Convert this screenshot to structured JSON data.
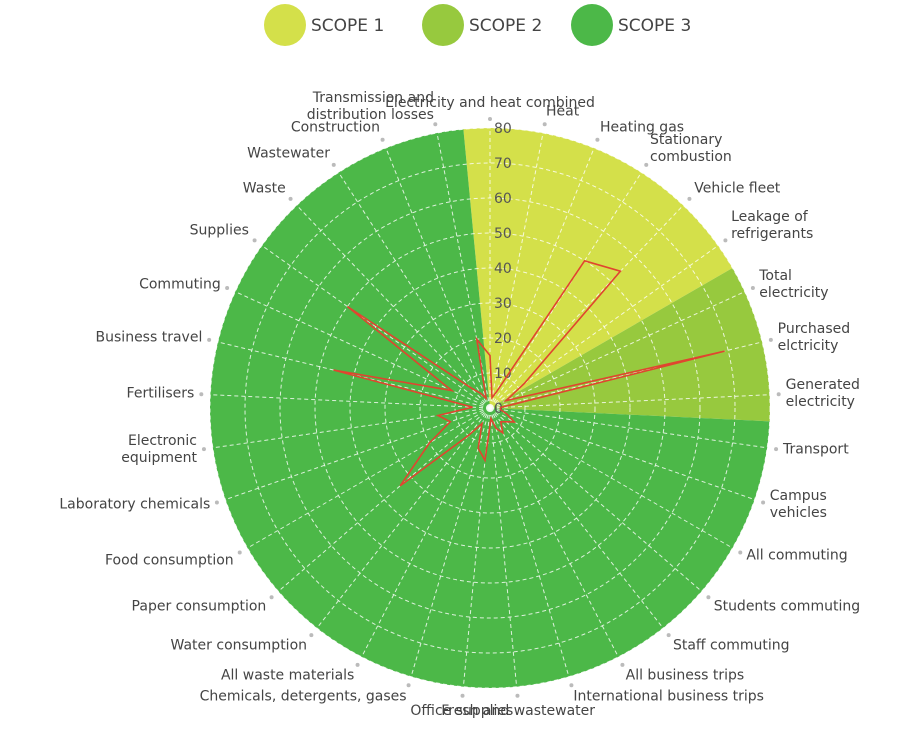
{
  "chart_data": {
    "type": "radar",
    "scopes": [
      {
        "name": "SCOPE 1",
        "color": "#d4e04a",
        "categories": [
          "Electricity and heat combined",
          "Heat",
          "Heating gas",
          "Stationary\ncombustion",
          "Vehicle fleet",
          "Leakage of\nrefrigerants"
        ],
        "values": [
          15,
          3,
          5,
          50,
          54,
          12
        ]
      },
      {
        "name": "SCOPE 2",
        "color": "#97c93e",
        "categories": [
          "Total\nelectricity",
          "Purchased\nelctricity",
          "Generated\nelectricity"
        ],
        "values": [
          5,
          69,
          3
        ]
      },
      {
        "name": "SCOPE 3",
        "color": "#4cb848",
        "categories": [
          "Transport",
          "Campus\nvehicles",
          "All commuting",
          "Students commuting",
          "Staff commuting",
          "All business trips",
          "International business trips",
          "Fresh and wastewater",
          "Office supplies",
          "Chemicals, detergents, gases",
          "All waste materials",
          "Water consumption",
          "Paper consumption",
          "Food consumption",
          "Laboratory chemicals",
          "Electronic\nequipment",
          "Fertilisers",
          "Business travel",
          "Commuting",
          "Supplies",
          "Waste",
          "Wastewater",
          "Construction",
          "Transmission and\ndistribution losses"
        ],
        "values": [
          3,
          5,
          8,
          6,
          5,
          8,
          6,
          3,
          15,
          12,
          5,
          10,
          34,
          20,
          12,
          15,
          5,
          46,
          12,
          50,
          8,
          5,
          3,
          20
        ]
      }
    ],
    "line_color": "#e0452f",
    "rlim": [
      0,
      80
    ],
    "rticks": [
      0,
      10,
      20,
      30,
      40,
      50,
      60,
      70,
      80
    ],
    "grid": true
  }
}
